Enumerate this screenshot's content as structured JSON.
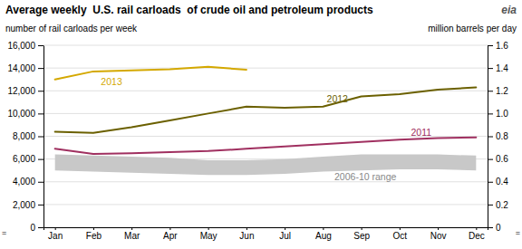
{
  "chart_data": {
    "type": "line",
    "title": "Average weekly  U.S. rail carloads  of crude oil and petroleum products",
    "ylabel": "number of rail carloads per week",
    "y2label": "million barrels per day",
    "annotations": [
      "=",
      "=",
      "eia"
    ],
    "categories": [
      "Jan",
      "Feb",
      "Mar",
      "Apr",
      "May",
      "Jun",
      "Jul",
      "Aug",
      "Sep",
      "Oct",
      "Nov",
      "Dec"
    ],
    "series": [
      {
        "name": "2006-10 range",
        "type": "area",
        "color": "#C8C8C8",
        "upper": [
          6400,
          6300,
          6200,
          6100,
          5900,
          5900,
          6000,
          6200,
          6400,
          6400,
          6400,
          6300
        ],
        "lower": [
          5000,
          4900,
          4800,
          4700,
          4600,
          4600,
          4700,
          4900,
          5000,
          5100,
          5100,
          5000
        ]
      },
      {
        "name": "2011",
        "color": "#A03060",
        "values": [
          6900,
          6450,
          6500,
          6600,
          6700,
          6900,
          7100,
          7300,
          7500,
          7700,
          7850,
          7900
        ]
      },
      {
        "name": "2012",
        "color": "#6B6000",
        "values": [
          8400,
          8300,
          8800,
          9400,
          10000,
          10600,
          10500,
          10600,
          11500,
          11700,
          12100,
          12300
        ]
      },
      {
        "name": "2013",
        "color": "#D4A800",
        "values": [
          13000,
          13700,
          13800,
          13900,
          14100,
          13850,
          null,
          null,
          null,
          null,
          null,
          null
        ]
      }
    ],
    "ylim": [
      0,
      16000
    ],
    "yticks": [
      0,
      {
        "value": 2000,
        "label": "2,000"
      },
      {
        "value": 4000,
        "label": "4,000"
      },
      {
        "value": 6000,
        "label": "6,000"
      },
      {
        "value": 8000,
        "label": "8,000"
      },
      {
        "value": 10000,
        "label": "10,000"
      },
      {
        "value": 12000,
        "label": "12,000"
      },
      {
        "value": 14000,
        "label": "14,000"
      },
      {
        "value": 16000,
        "label": "16,000"
      }
    ],
    "y2lim": [
      0,
      1.6
    ],
    "y2ticks": [
      0,
      0.2,
      0.4,
      0.6,
      0.8,
      {
        "value": 1.0,
        "label": "1.0"
      },
      1.2,
      1.4,
      1.6
    ],
    "grid": true
  }
}
